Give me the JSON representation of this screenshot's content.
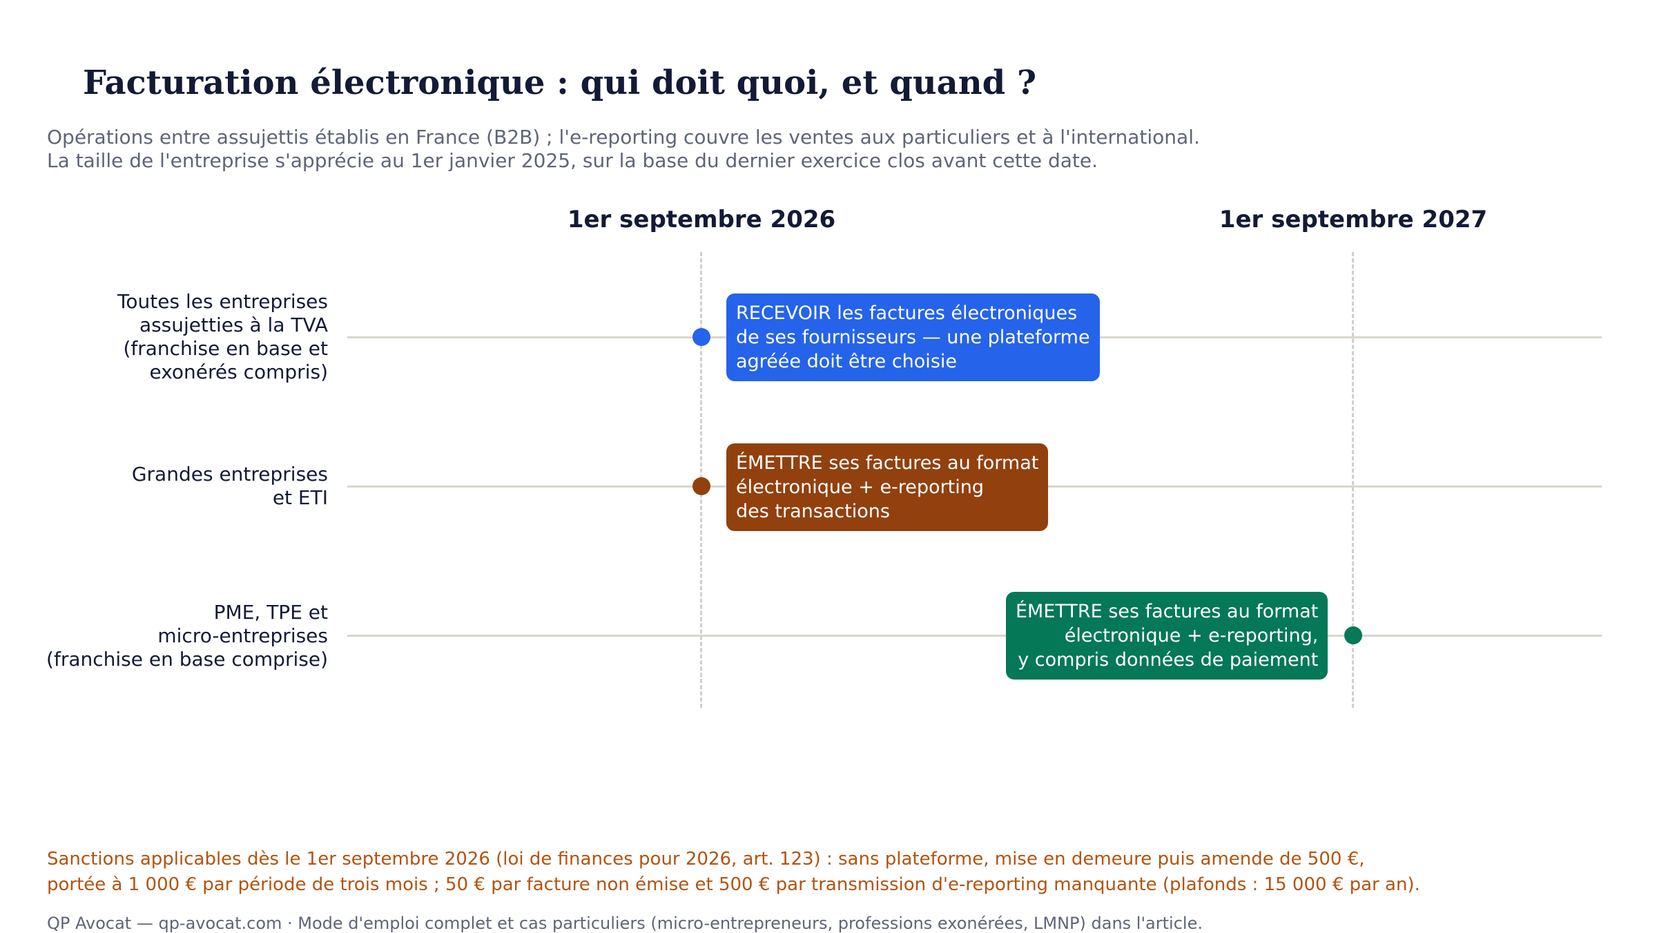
{
  "header": {
    "title": "Facturation électronique : qui doit quoi, et quand ?",
    "subtitle_line1": "Opérations entre assujettis établis en France (B2B) ; l'e-reporting couvre les ventes aux particuliers et à l'international.",
    "subtitle_line2": "La taille de l'entreprise s'apprécie au 1er janvier 2025, sur la base du dernier exercice clos avant cette date."
  },
  "timeline": {
    "dates": [
      "1er septembre 2026",
      "1er septembre 2027"
    ],
    "rows": [
      {
        "label": [
          "Toutes les entreprises",
          "assujetties à la TVA",
          "(franchise en base et",
          "exonérés compris)"
        ],
        "date": "1er septembre 2026",
        "obligation": [
          "RECEVOIR les factures électroniques",
          "de ses fournisseurs — une plateforme",
          "agréée doit être choisie"
        ],
        "color": "#2563eb"
      },
      {
        "label": [
          "Grandes entreprises",
          "et ETI"
        ],
        "date": "1er septembre 2026",
        "obligation": [
          "ÉMETTRE ses factures au format",
          "électronique + e-reporting",
          "des transactions"
        ],
        "color": "#92400e"
      },
      {
        "label": [
          "PME, TPE et",
          "micro-entreprises",
          "(franchise en base comprise)"
        ],
        "date": "1er septembre 2027",
        "obligation": [
          "ÉMETTRE ses factures au format",
          "électronique + e-reporting,",
          "y compris données de paiement"
        ],
        "color": "#047857"
      }
    ]
  },
  "notes": {
    "sanctions_line1": "Sanctions applicables dès le 1er septembre 2026 (loi de finances pour 2026, art. 123) : sans plateforme, mise en demeure puis amende de 500 €,",
    "sanctions_line2": "portée à 1 000 € par période de trois mois ; 50 € par facture non émise et 500 € par transmission d'e-reporting manquante (plafonds : 15 000 € par an).",
    "footer": "QP Avocat — qp-avocat.com  ·  Mode d'emploi complet et cas particuliers (micro-entrepreneurs, professions exonérées, LMNP) dans l'article."
  },
  "colors": {
    "dashed_line": "#cfcfcf",
    "row_line": "#d9d6cc",
    "note": "#b4530f"
  }
}
